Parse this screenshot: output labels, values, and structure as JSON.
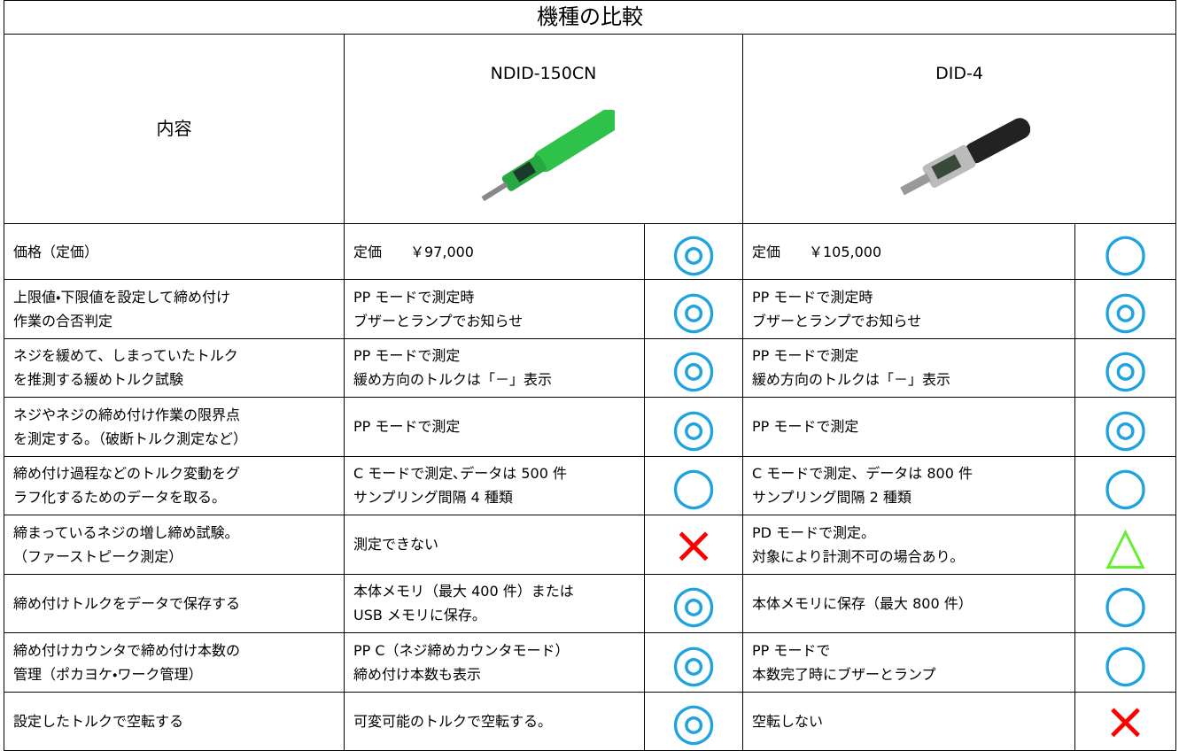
{
  "title": "機種の比較",
  "header": {
    "label": "内容",
    "products": [
      "NDID-150CN",
      "DID-4"
    ]
  },
  "rows": [
    {
      "item": "価格（定価）",
      "a": {
        "text": "定価　　￥97,000",
        "symbol": "◎",
        "color": "#1fa3e0"
      },
      "b": {
        "text": "定価　　￥105,000",
        "symbol": "○",
        "color": "#1fa3e0"
      }
    },
    {
      "item": "上限値・下限値を設定して締め付け\n作業の合否判定",
      "a": {
        "text": "PP モードで測定時\nブザーとランプでお知らせ",
        "symbol": "◎",
        "color": "#1fa3e0"
      },
      "b": {
        "text": "PP モードで測定時\nブザーとランプでお知らせ",
        "symbol": "◎",
        "color": "#1fa3e0"
      }
    },
    {
      "item": "ネジを緩めて、しまっていたトルク\nを推測する緩めトルク試験",
      "a": {
        "text": "PP モードで測定\n緩め方向のトルクは「－」表示",
        "symbol": "◎",
        "color": "#1fa3e0"
      },
      "b": {
        "text": "PP モードで測定\n緩め方向のトルクは「－」表示",
        "symbol": "◎",
        "color": "#1fa3e0"
      }
    },
    {
      "item": "ネジやネジの締め付け作業の限界点\nを測定する。（破断トルク測定など）",
      "a": {
        "text": "PP モードで測定",
        "symbol": "◎",
        "color": "#1fa3e0"
      },
      "b": {
        "text": "PP モードで測定",
        "symbol": "◎",
        "color": "#1fa3e0"
      }
    },
    {
      "item": "締め付け過程などのトルク変動をグ\nラフ化するためのデータを取る。",
      "a": {
        "text": "C モードで測定､データは 500 件\nサンプリング間隔 4 種類",
        "symbol": "○",
        "color": "#1fa3e0"
      },
      "b": {
        "text": "C モードで測定、データは 800 件\nサンプリング間隔 2 種類",
        "symbol": "○",
        "color": "#1fa3e0"
      }
    },
    {
      "item": "締まっているネジの増し締め試験。\n（ファーストピーク測定）",
      "a": {
        "text": "測定できない",
        "symbol": "×",
        "color": "#ff0000"
      },
      "b": {
        "text": "PD モードで測定。\n対象により計測不可の場合あり。",
        "symbol": "△",
        "color": "#66ee33"
      }
    },
    {
      "item": "締め付けトルクをデータで保存する",
      "a": {
        "text": "本体メモリ（最大 400 件）または\nUSB メモリに保存。",
        "symbol": "◎",
        "color": "#1fa3e0"
      },
      "b": {
        "text": "本体メモリに保存（最大 800 件）",
        "symbol": "○",
        "color": "#1fa3e0"
      }
    },
    {
      "item": "締め付けカウンタで締め付け本数の\n管理（ポカヨケ・ワーク管理）",
      "a": {
        "text": "PP C（ネジ締めカウンタモード）\n締め付け本数も表示",
        "symbol": "◎",
        "color": "#1fa3e0"
      },
      "b": {
        "text": "PP モードで\n本数完了時にブザーとランプ",
        "symbol": "○",
        "color": "#1fa3e0"
      }
    },
    {
      "item": "設定したトルクで空転する",
      "a": {
        "text": "可変可能のトルクで空転する。",
        "symbol": "◎",
        "color": "#1fa3e0"
      },
      "b": {
        "text": "空転しない",
        "symbol": "×",
        "color": "#ff0000"
      }
    }
  ]
}
